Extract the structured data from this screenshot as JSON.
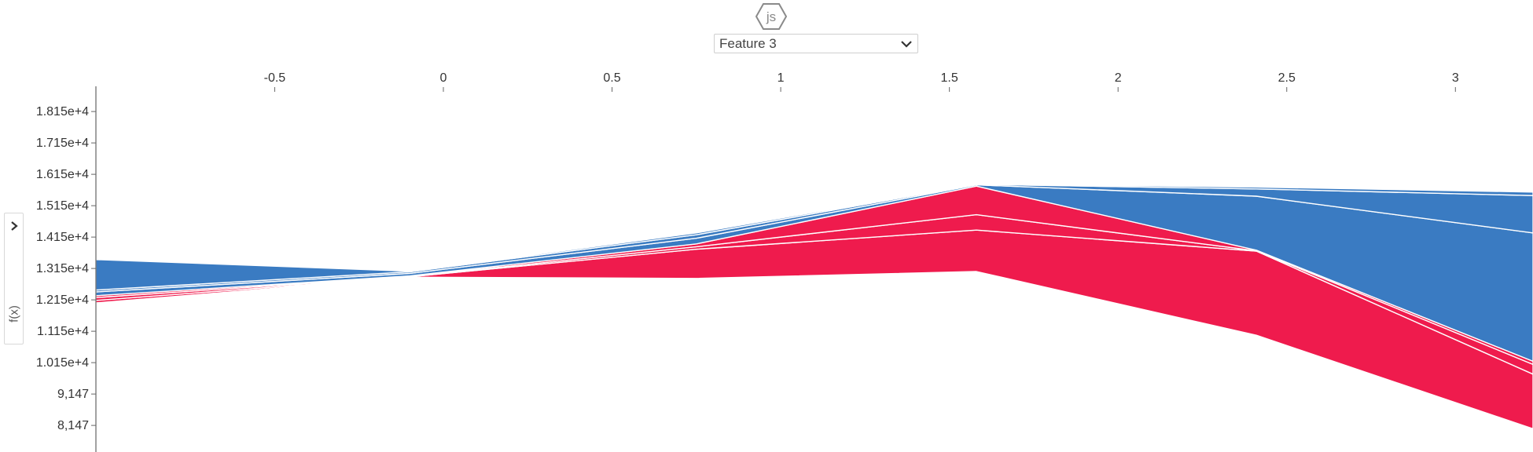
{
  "header": {
    "logo_text": "js",
    "logo_icon": "js-hexagon-icon",
    "feature_select": {
      "selected": "Feature 3",
      "icon": "chevron-down-icon"
    }
  },
  "sidebar_toggle": {
    "icon": "chevron-right-icon",
    "label": "f(x)"
  },
  "chart_data": {
    "type": "area",
    "x_ticks": [
      "-0.5",
      "0",
      "0.5",
      "1",
      "1.5",
      "2",
      "2.5",
      "3"
    ],
    "y_ticks": [
      "1.815e+4",
      "1.715e+4",
      "1.615e+4",
      "1.515e+4",
      "1.415e+4",
      "1.315e+4",
      "1.215e+4",
      "1.115e+4",
      "1.015e+4",
      "9,147",
      "8,147"
    ],
    "xlim": [
      -1.03,
      3.23
    ],
    "ylim": [
      7300,
      18900
    ],
    "y_tick_values": [
      18147,
      17147,
      16147,
      15147,
      14147,
      13147,
      12147,
      11147,
      10147,
      9147,
      8147
    ],
    "colors": {
      "positive": "#ef1b4d",
      "negative": "#3a7bc2",
      "separator": "#ffffff"
    },
    "x": [
      -1.03,
      -0.1,
      0.75,
      1.58,
      2.41,
      3.23
    ],
    "boundaries": [
      [
        12050,
        12870,
        12830,
        13050,
        11020,
        8040
      ],
      [
        12130,
        12880,
        13760,
        14370,
        13700,
        9780
      ],
      [
        12220,
        12890,
        13840,
        14860,
        13710,
        10090
      ],
      [
        12280,
        12910,
        13930,
        15770,
        13730,
        10190
      ],
      [
        12400,
        12990,
        14110,
        15810,
        15450,
        14280
      ],
      [
        12460,
        13040,
        14220,
        15830,
        15680,
        15470
      ],
      [
        13430,
        13060,
        14280,
        15840,
        15740,
        15580
      ]
    ]
  }
}
